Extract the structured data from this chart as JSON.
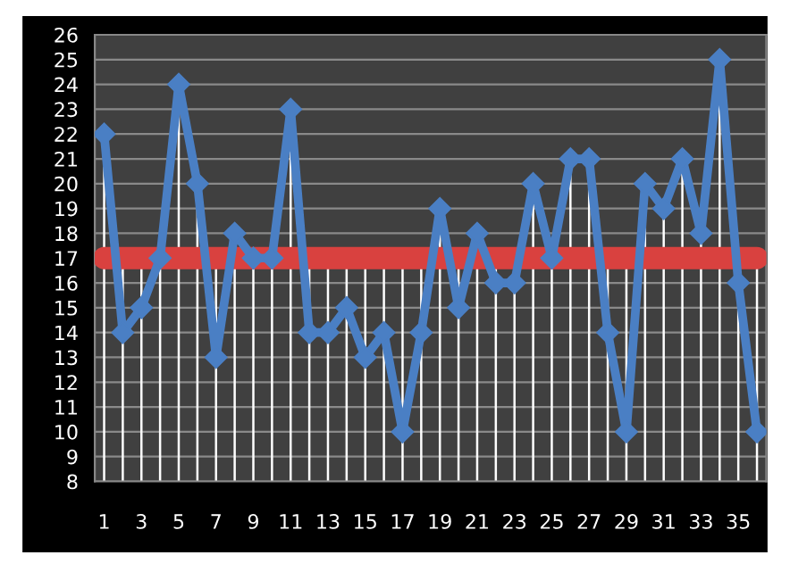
{
  "chart_data": {
    "type": "line",
    "categories": [
      "1",
      null,
      "3",
      null,
      "5",
      null,
      "7",
      null,
      "9",
      null,
      "11",
      null,
      "13",
      null,
      "15",
      null,
      "17",
      null,
      "19",
      null,
      "21",
      null,
      "23",
      null,
      "25",
      null,
      "27",
      null,
      "29",
      null,
      "31",
      null,
      "33",
      null,
      "35",
      null
    ],
    "series": [
      {
        "color": "#4a7fc4",
        "marker": "diamond",
        "values": [
          22,
          14,
          15,
          17,
          24,
          20,
          13,
          18,
          17,
          17,
          23,
          14,
          14,
          15,
          13,
          14,
          10,
          14,
          19,
          15,
          18,
          16,
          16,
          20,
          17,
          21,
          21,
          14,
          10,
          20,
          19,
          21,
          18,
          25,
          16,
          10
        ]
      },
      {
        "color": "#d9413f",
        "marker": "none",
        "values": [
          17,
          17,
          17,
          17,
          17,
          17,
          17,
          17,
          17,
          17,
          17,
          17,
          17,
          17,
          17,
          17,
          17,
          17,
          17,
          17,
          17,
          17,
          17,
          17,
          17,
          17,
          17,
          17,
          17,
          17,
          17,
          17,
          17,
          17,
          17,
          17
        ]
      }
    ],
    "ylim": [
      8,
      26
    ],
    "yticks": [
      8,
      9,
      10,
      11,
      12,
      13,
      14,
      15,
      16,
      17,
      18,
      19,
      20,
      21,
      22,
      23,
      24,
      25,
      26
    ],
    "grid": true,
    "legend": false,
    "line_style": "solid"
  }
}
